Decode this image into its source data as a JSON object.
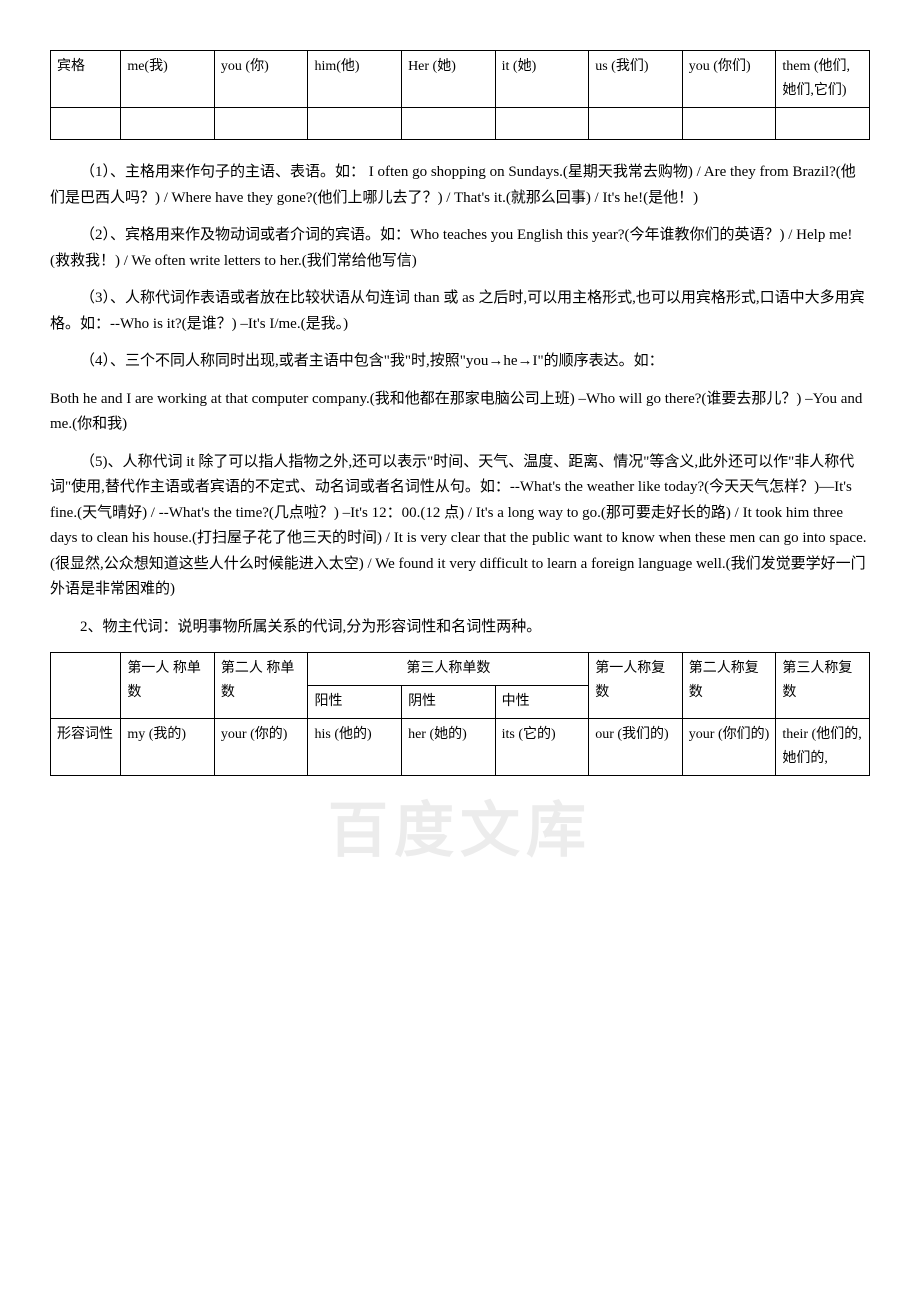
{
  "table1": {
    "rowlabel": "宾格",
    "cells": [
      "me(我)",
      "you (你)",
      "him(他)",
      "Her\n(她)",
      "it (她)",
      "us\n(我们)",
      "you\n(你们)",
      "them (他们,她们,它们)"
    ]
  },
  "paragraphs": {
    "p1": "（1）、主格用来作句子的主语、表语。如： I often go shopping on Sundays.(星期天我常去购物) / Are they from Brazil?(他们是巴西人吗？) / Where have they gone?(他们上哪儿去了？) / That's it.(就那么回事) / It's he!(是他！)",
    "p2": "（2）、宾格用来作及物动词或者介词的宾语。如：Who teaches you English this year?(今年谁教你们的英语？) / Help me!(救救我！) / We often write letters to  her.(我们常给他写信)",
    "p3": "（3）、人称代词作表语或者放在比较状语从句连词 than 或 as 之后时,可以用主格形式,也可以用宾格形式,口语中大多用宾格。如：--Who is it?(是谁？) –It's I/me.(是我。)",
    "p4": "（4）、三个不同人称同时出现,或者主语中包含\"我\"时,按照\"you→he→I\"的顺序表达。如：",
    "p5": "Both he and I are working at that computer company.(我和他都在那家电脑公司上班) –Who will go there?(谁要去那儿？) –You and me.(你和我)",
    "p6": "（5)、人称代词 it 除了可以指人指物之外,还可以表示\"时间、天气、温度、距离、情况\"等含义,此外还可以作\"非人称代词\"使用,替代作主语或者宾语的不定式、动名词或者名词性从句。如：--What's the weather like today?(今天天气怎样？)—It's fine.(天气晴好) / --What's the time?(几点啦？) –It's 12：00.(12 点) / It's a long way to go.(那可要走好长的路) / It took him three days to clean his house.(打扫屋子花了他三天的时间) / It is very clear that the public want to know when these men can go into space.(很显然,公众想知道这些人什么时候能进入太空) / We found it very difficult to learn a foreign language well.(我们发觉要学好一门外语是非常困难的)",
    "p7": "2、物主代词：说明事物所属关系的代词,分为形容词性和名词性两种。"
  },
  "table2": {
    "header": {
      "c1": "第一人\n称单数",
      "c2": "第二人\n称单数",
      "c3span": "第三人称单数",
      "c3a": "阳性",
      "c3b": "阴性",
      "c3c": "中性",
      "c4": "第一人称复数",
      "c5": "第二人称复数",
      "c6": "第三人称复数"
    },
    "row": {
      "label": "形容词性",
      "cells": [
        "my\n(我的)",
        "your\n(你的)",
        "his\n(他的)",
        "her\n(她的)",
        "its\n(它的)",
        "our\n(我们的)",
        "your\n(你们的)",
        "their (他们的,她们的,"
      ]
    }
  }
}
